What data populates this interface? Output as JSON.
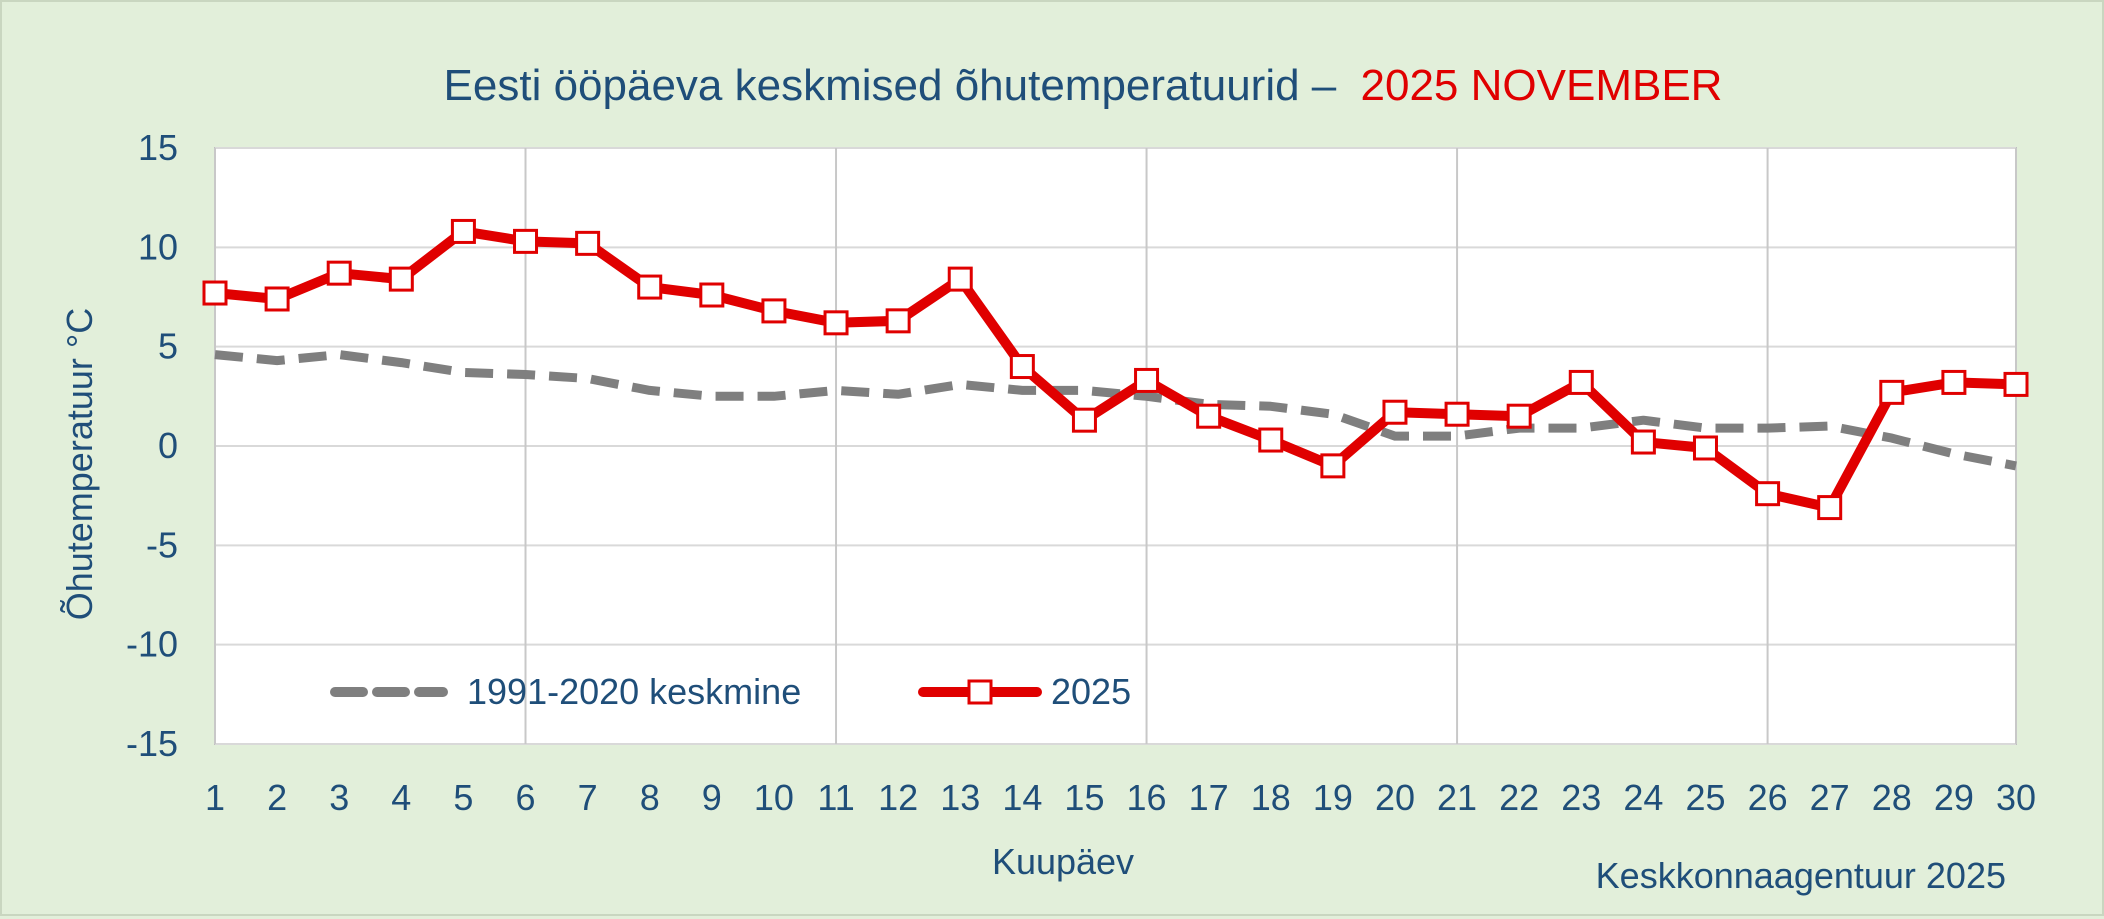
{
  "chart_data": {
    "type": "line",
    "title_main": "Eesti ööpäeva keskmised õhutemperatuurid –",
    "title_highlight": "2025 NOVEMBER",
    "xlabel": "Kuupäev",
    "ylabel": "Õhutemperatuur °C",
    "credit": "Keskkonnaagentuur 2025",
    "categories": [
      "1",
      "2",
      "3",
      "4",
      "5",
      "6",
      "7",
      "8",
      "9",
      "10",
      "11",
      "12",
      "13",
      "14",
      "15",
      "16",
      "17",
      "18",
      "19",
      "20",
      "21",
      "22",
      "23",
      "24",
      "25",
      "26",
      "27",
      "28",
      "29",
      "30"
    ],
    "ylim": [
      -15,
      15
    ],
    "yticks": [
      -15,
      -10,
      -5,
      0,
      5,
      10,
      15
    ],
    "ytick_labels": [
      "-15",
      "-10",
      "-5",
      "0",
      "5",
      "10",
      "15"
    ],
    "x_gridlines_at": [
      "1",
      "6",
      "11",
      "16",
      "21",
      "26",
      "30"
    ],
    "grid": true,
    "legend_position": "bottom-left",
    "series": [
      {
        "name": "1991-2020 keskmine",
        "style": "dashed",
        "color": "#7f7f7f",
        "values": [
          4.6,
          4.3,
          4.6,
          4.2,
          3.7,
          3.6,
          3.4,
          2.8,
          2.5,
          2.5,
          2.8,
          2.6,
          3.1,
          2.8,
          2.8,
          2.5,
          2.1,
          2.0,
          1.6,
          0.5,
          0.5,
          0.9,
          0.9,
          1.3,
          0.9,
          0.9,
          1.0,
          0.4,
          -0.4,
          -1.0
        ]
      },
      {
        "name": "2025",
        "style": "solid-square-markers",
        "color": "#e00000",
        "values": [
          7.7,
          7.4,
          8.7,
          8.4,
          10.8,
          10.3,
          10.2,
          8.0,
          7.6,
          6.8,
          6.2,
          6.3,
          8.4,
          4.0,
          1.3,
          3.3,
          1.5,
          0.3,
          -1.0,
          1.7,
          1.6,
          1.5,
          3.2,
          0.2,
          -0.1,
          -2.4,
          -3.1,
          2.7,
          3.2,
          3.1
        ]
      }
    ]
  }
}
